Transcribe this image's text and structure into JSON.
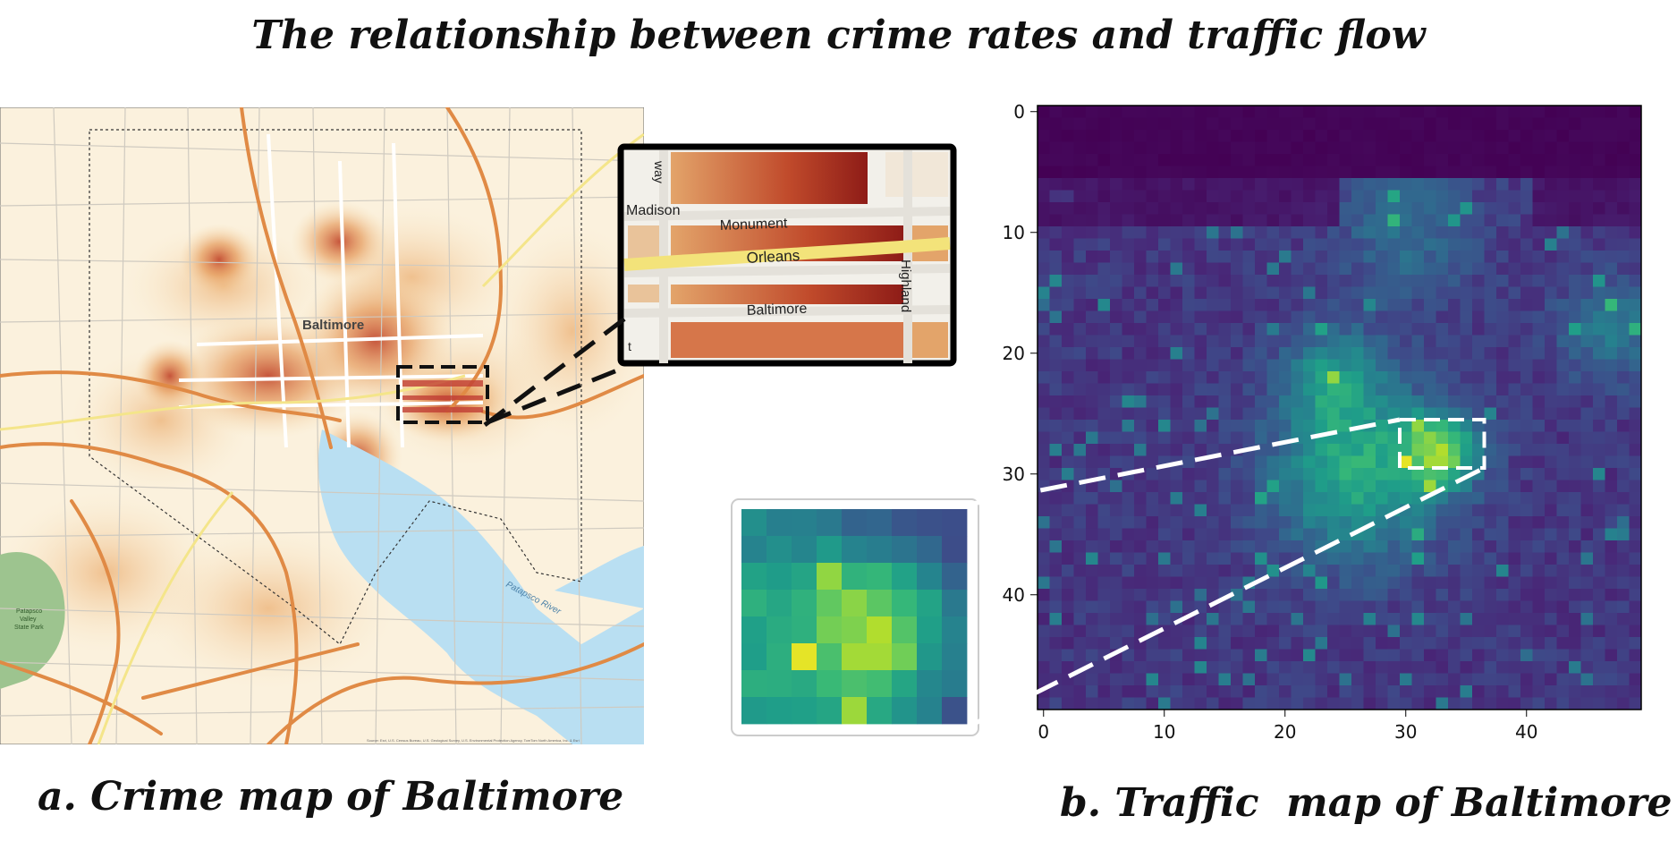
{
  "title": "The relationship between crime rates and traffic flow",
  "panel_a": {
    "caption": "a. Crime map of Baltimore",
    "city_label": "Baltimore",
    "river_label": "Patapsco River",
    "park_label": [
      "Patapsco",
      "Valley",
      "State Park"
    ],
    "road_labels": [
      "Madison",
      "Monument",
      "Orleans",
      "Baltimore",
      "Highland",
      "way",
      "t"
    ],
    "attribution": "Source: Esri, U.S. Census Bureau, U.S. Geological Survey, U.S. Environmental Protection Agency, TomTom North America, Inc. & Esri"
  },
  "panel_b": {
    "caption": "b. Traffic  map of Baltimore",
    "colormap": "viridis",
    "xticks": [
      "0",
      "10",
      "20",
      "30",
      "40"
    ],
    "yticks": [
      "0",
      "10",
      "20",
      "30",
      "40"
    ],
    "grid_size": 50,
    "zoom_box": {
      "x0": 30,
      "x1": 37,
      "y0": 26,
      "y1": 30
    }
  },
  "colors": {
    "highway": "#e08a45",
    "crime_hot": "#b8402a",
    "water": "#b9dff2",
    "park": "#9dc48f",
    "viridis_low": "#440154",
    "viridis_high": "#fde725"
  }
}
